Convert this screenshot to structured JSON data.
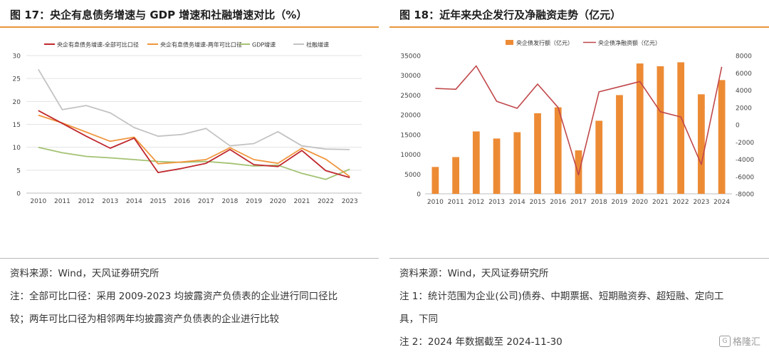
{
  "left": {
    "title": "图 17：央企有息债务增速与 GDP 增速和社融增速对比（%）",
    "source": "资料来源：Wind，天风证券研究所",
    "note_line1": "注：全部可比口径：采用 2009-2023 均披露资产负债表的企业进行同口径比",
    "note_line2": "较；两年可比口径为相邻两年均披露资产负债表的企业进行比较",
    "chart_data": {
      "type": "line",
      "categories": [
        "2010",
        "2011",
        "2012",
        "2013",
        "2014",
        "2015",
        "2016",
        "2017",
        "2018",
        "2019",
        "2020",
        "2021",
        "2022",
        "2023"
      ],
      "ylim": [
        0,
        30
      ],
      "yticks": [
        0,
        5,
        10,
        15,
        20,
        25,
        30
      ],
      "grid": true,
      "legend_position": "top",
      "series": [
        {
          "name": "央企有息债务增速-全部可比口径",
          "color": "#C0282D",
          "values": [
            18.0,
            15.2,
            12.4,
            9.8,
            12.0,
            4.5,
            5.4,
            6.5,
            9.5,
            6.2,
            5.8,
            9.3,
            4.9,
            3.4
          ]
        },
        {
          "name": "央企有息债务增速-两年可比口径",
          "color": "#F0963C",
          "values": [
            17.0,
            15.3,
            13.3,
            11.3,
            12.2,
            6.4,
            6.8,
            7.3,
            9.9,
            7.3,
            6.5,
            9.8,
            7.4,
            3.6
          ]
        },
        {
          "name": "GDP增速",
          "color": "#A3C272",
          "values": [
            10.0,
            8.8,
            8.0,
            7.7,
            7.3,
            6.9,
            6.7,
            6.9,
            6.5,
            5.9,
            6.1,
            4.3,
            3.0,
            5.2
          ]
        },
        {
          "name": "社融增速",
          "color": "#C3C3C3",
          "values": [
            27.0,
            18.2,
            19.1,
            17.5,
            14.3,
            12.4,
            12.8,
            14.1,
            10.3,
            10.8,
            13.4,
            10.3,
            9.6,
            9.5
          ]
        }
      ]
    }
  },
  "right": {
    "title": "图 18：近年来央企发行及净融资走势（亿元）",
    "source": "资料来源：Wind，天风证券研究所",
    "note1_line1": "注 1：统计范围为企业(公司)债券、中期票据、短期融资券、超短融、定向工",
    "note1_line2": "具，下同",
    "note2": "注 2：2024 年数据截至 2024-11-30",
    "chart_data": {
      "type": "bar",
      "categories": [
        "2010",
        "2011",
        "2012",
        "2013",
        "2014",
        "2015",
        "2016",
        "2017",
        "2018",
        "2019",
        "2020",
        "2021",
        "2022",
        "2023",
        "2024"
      ],
      "ylim_left": [
        0,
        35000
      ],
      "yticks_left": [
        0,
        5000,
        10000,
        15000,
        20000,
        25000,
        30000,
        35000
      ],
      "ylim_right": [
        -8000,
        8000
      ],
      "yticks_right": [
        -8000,
        -6000,
        -4000,
        -2000,
        0,
        2000,
        4000,
        6000,
        8000
      ],
      "grid": false,
      "legend_position": "top",
      "series": [
        {
          "name": "央企债发行额（亿元）",
          "type": "bar",
          "axis": "left",
          "color": "#ED8B35",
          "values": [
            6800,
            9300,
            15800,
            14000,
            15600,
            20400,
            21900,
            11000,
            18500,
            25000,
            33000,
            32300,
            33300,
            25200,
            28800
          ]
        },
        {
          "name": "央企债净融资额（亿元）",
          "type": "line",
          "axis": "right",
          "color": "#C0474A",
          "values": [
            4200,
            4100,
            6800,
            2700,
            1900,
            4700,
            2000,
            -5800,
            3800,
            4400,
            5000,
            1500,
            900,
            -4600,
            6700
          ]
        }
      ]
    }
  },
  "watermark": "格隆汇",
  "watermark_icon": "G"
}
